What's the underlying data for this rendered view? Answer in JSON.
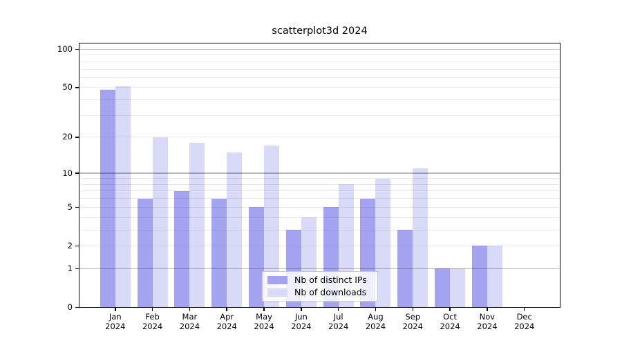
{
  "chart_data": {
    "type": "bar",
    "title": "scatterplot3d 2024",
    "categories": [
      "Jan 2024",
      "Feb 2024",
      "Mar 2024",
      "Apr 2024",
      "May 2024",
      "Jun 2024",
      "Jul 2024",
      "Aug 2024",
      "Sep 2024",
      "Oct 2024",
      "Nov 2024",
      "Dec 2024"
    ],
    "x_months": [
      "Jan",
      "Feb",
      "Mar",
      "Apr",
      "May",
      "Jun",
      "Jul",
      "Aug",
      "Sep",
      "Oct",
      "Nov",
      "Dec"
    ],
    "x_year": "2024",
    "series": [
      {
        "name": "Nb of distinct IPs",
        "color": "#a3a3f0",
        "values": [
          48,
          6,
          7,
          6,
          5,
          3,
          5,
          6,
          3,
          1,
          2,
          0
        ]
      },
      {
        "name": "Nb of downloads",
        "color": "#d9d9f8",
        "values": [
          51,
          20,
          18,
          15,
          17,
          4,
          8,
          9,
          11,
          1,
          2,
          0
        ]
      }
    ],
    "xlabel": "",
    "ylabel": "",
    "yscale": "log1p",
    "yticks": [
      0,
      1,
      2,
      5,
      10,
      20,
      50,
      100
    ],
    "ylim": [
      0,
      110
    ],
    "grid": "on",
    "grid_major_values": [
      1,
      10,
      100
    ],
    "grid_minor_values": [
      2,
      3,
      4,
      5,
      6,
      7,
      8,
      9,
      20,
      30,
      40,
      50,
      60,
      70,
      80,
      90
    ],
    "legend_position": "bottom-center"
  },
  "style": {
    "background": "#ffffff",
    "axis_color": "#000000",
    "grid_major_color": "rgba(0,0,0,0.28)",
    "grid_minor_color": "rgba(0,0,0,0.08)",
    "legend_border_color": "#cccccc"
  }
}
